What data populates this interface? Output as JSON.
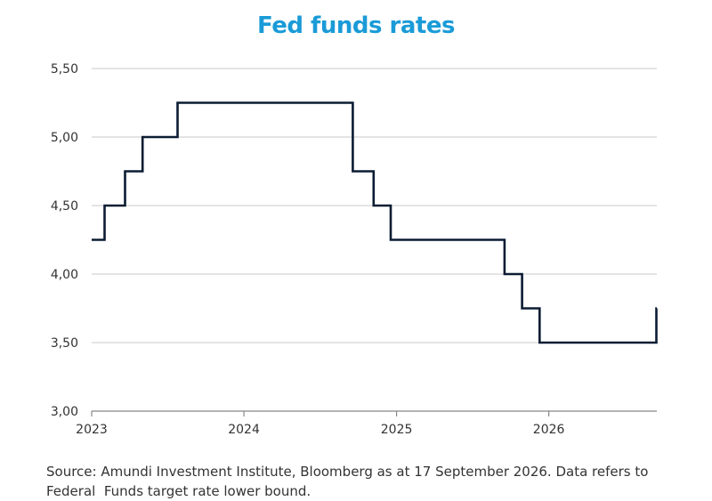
{
  "chart_data": {
    "type": "line",
    "title": "Fed funds rates",
    "xlabel": "",
    "ylabel": "",
    "y_ticks": [
      "3,00",
      "3,50",
      "4,00",
      "4,50",
      "5,00",
      "5,50"
    ],
    "x_ticks": [
      "2023",
      "2024",
      "2025",
      "2026"
    ],
    "ylim": [
      3.0,
      5.5
    ],
    "xlim": [
      "2023-01-01",
      "2026-09-17"
    ],
    "grid": "horizontal",
    "line_style": "step",
    "series": [
      {
        "color": "#0b1c33",
        "points": [
          {
            "x": "2023-01-01",
            "y": 4.25
          },
          {
            "x": "2023-02-01",
            "y": 4.5
          },
          {
            "x": "2023-03-22",
            "y": 4.75
          },
          {
            "x": "2023-05-03",
            "y": 5.0
          },
          {
            "x": "2023-07-26",
            "y": 5.25
          },
          {
            "x": "2024-09-18",
            "y": 4.75
          },
          {
            "x": "2024-11-07",
            "y": 4.5
          },
          {
            "x": "2024-12-18",
            "y": 4.25
          },
          {
            "x": "2025-09-17",
            "y": 4.0
          },
          {
            "x": "2025-10-29",
            "y": 3.75
          },
          {
            "x": "2025-12-10",
            "y": 3.5
          },
          {
            "x": "2026-09-16",
            "y": 3.75
          }
        ]
      }
    ]
  },
  "footer": {
    "source_line1": "Source: Amundi Investment Institute, Bloomberg as at 17 September 2026. Data refers to",
    "source_line2": "Federal  Funds target rate lower bound."
  }
}
